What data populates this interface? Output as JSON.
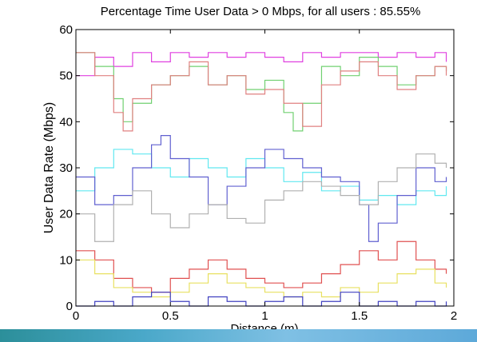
{
  "chart_data": {
    "type": "line",
    "title": "Percentage Time User Data > 0 Mbps, for all users : 85.55%",
    "xlabel": "Distance (m)",
    "ylabel": "User Data Rate (Mbps)",
    "xlim": [
      0,
      2
    ],
    "ylim": [
      0,
      60
    ],
    "xticks": [
      "0",
      "0.5",
      "1",
      "1.5",
      "2"
    ],
    "yticks": [
      "0",
      "10",
      "20",
      "30",
      "40",
      "50",
      "60"
    ],
    "grid": false,
    "step": true,
    "series": [
      {
        "color": "#e040e0",
        "x": [
          0.0,
          0.1,
          0.2,
          0.3,
          0.4,
          0.5,
          0.6,
          0.7,
          0.8,
          0.9,
          1.0,
          1.1,
          1.2,
          1.3,
          1.4,
          1.5,
          1.6,
          1.7,
          1.8,
          1.9,
          1.96
        ],
        "y": [
          50,
          54,
          52,
          55,
          53,
          55,
          54,
          55,
          54,
          55,
          54,
          53,
          55,
          54,
          55,
          55,
          54,
          55,
          54,
          55,
          53
        ]
      },
      {
        "color": "#70d070",
        "x": [
          0.0,
          0.1,
          0.2,
          0.25,
          0.3,
          0.4,
          0.5,
          0.6,
          0.7,
          0.8,
          0.9,
          1.0,
          1.1,
          1.15,
          1.2,
          1.3,
          1.4,
          1.5,
          1.6,
          1.7,
          1.8,
          1.9,
          1.96
        ],
        "y": [
          55,
          52,
          45,
          40,
          44,
          48,
          50,
          52,
          48,
          50,
          47,
          49,
          42,
          38,
          44,
          52,
          50,
          54,
          52,
          48,
          50,
          52,
          51
        ]
      },
      {
        "color": "#e08080",
        "x": [
          0.0,
          0.1,
          0.2,
          0.25,
          0.3,
          0.4,
          0.5,
          0.6,
          0.7,
          0.8,
          0.9,
          1.0,
          1.1,
          1.2,
          1.3,
          1.4,
          1.5,
          1.6,
          1.7,
          1.8,
          1.9,
          1.96
        ],
        "y": [
          55,
          50,
          42,
          38,
          45,
          48,
          50,
          53,
          48,
          50,
          46,
          47,
          44,
          39,
          48,
          51,
          53,
          50,
          47,
          50,
          52,
          50
        ]
      },
      {
        "color": "#60e8f0",
        "x": [
          0.0,
          0.1,
          0.2,
          0.3,
          0.4,
          0.5,
          0.6,
          0.7,
          0.8,
          0.9,
          1.0,
          1.1,
          1.2,
          1.3,
          1.4,
          1.5,
          1.6,
          1.7,
          1.8,
          1.9,
          1.96
        ],
        "y": [
          25,
          30,
          34,
          33,
          30,
          28,
          32,
          30,
          28,
          32,
          30,
          27,
          29,
          25,
          26,
          23,
          24,
          22,
          25,
          24,
          26
        ]
      },
      {
        "color": "#6060d0",
        "x": [
          0.0,
          0.1,
          0.2,
          0.3,
          0.4,
          0.45,
          0.5,
          0.6,
          0.7,
          0.8,
          0.9,
          1.0,
          1.1,
          1.2,
          1.3,
          1.4,
          1.5,
          1.55,
          1.6,
          1.7,
          1.8,
          1.9,
          1.96
        ],
        "y": [
          28,
          22,
          24,
          30,
          35,
          37,
          32,
          28,
          22,
          26,
          30,
          34,
          32,
          30,
          28,
          27,
          22,
          14,
          18,
          24,
          30,
          27,
          28
        ]
      },
      {
        "color": "#b0b0b0",
        "x": [
          0.0,
          0.1,
          0.2,
          0.3,
          0.4,
          0.5,
          0.6,
          0.7,
          0.8,
          0.9,
          1.0,
          1.1,
          1.2,
          1.3,
          1.4,
          1.5,
          1.6,
          1.7,
          1.8,
          1.9,
          1.96
        ],
        "y": [
          20,
          14,
          22,
          25,
          20,
          17,
          20,
          22,
          19,
          18,
          23,
          25,
          27,
          26,
          24,
          22,
          27,
          30,
          33,
          31,
          30
        ]
      },
      {
        "color": "#e05050",
        "x": [
          0.0,
          0.1,
          0.2,
          0.3,
          0.4,
          0.5,
          0.6,
          0.7,
          0.8,
          0.9,
          1.0,
          1.1,
          1.2,
          1.3,
          1.4,
          1.5,
          1.6,
          1.7,
          1.8,
          1.9,
          1.96
        ],
        "y": [
          12,
          10,
          6,
          4,
          3,
          6,
          8,
          10,
          8,
          6,
          5,
          4,
          5,
          7,
          9,
          12,
          10,
          14,
          10,
          8,
          7
        ]
      },
      {
        "color": "#e8e060",
        "x": [
          0.0,
          0.1,
          0.2,
          0.3,
          0.4,
          0.5,
          0.6,
          0.7,
          0.8,
          0.9,
          1.0,
          1.1,
          1.2,
          1.3,
          1.4,
          1.5,
          1.6,
          1.7,
          1.8,
          1.9,
          1.96
        ],
        "y": [
          10,
          7,
          4,
          3,
          2,
          3,
          5,
          7,
          5,
          4,
          3,
          2,
          3,
          2,
          4,
          3,
          5,
          7,
          8,
          5,
          4
        ]
      },
      {
        "color": "#4040c0",
        "x": [
          0.0,
          0.1,
          0.2,
          0.3,
          0.4,
          0.5,
          0.6,
          0.7,
          0.8,
          0.9,
          1.0,
          1.1,
          1.2,
          1.3,
          1.4,
          1.5,
          1.6,
          1.7,
          1.8,
          1.9,
          1.96
        ],
        "y": [
          0,
          1,
          0,
          2,
          3,
          1,
          0,
          2,
          1,
          0,
          1,
          2,
          0,
          1,
          3,
          0,
          1,
          0,
          1,
          0,
          1
        ]
      }
    ]
  }
}
